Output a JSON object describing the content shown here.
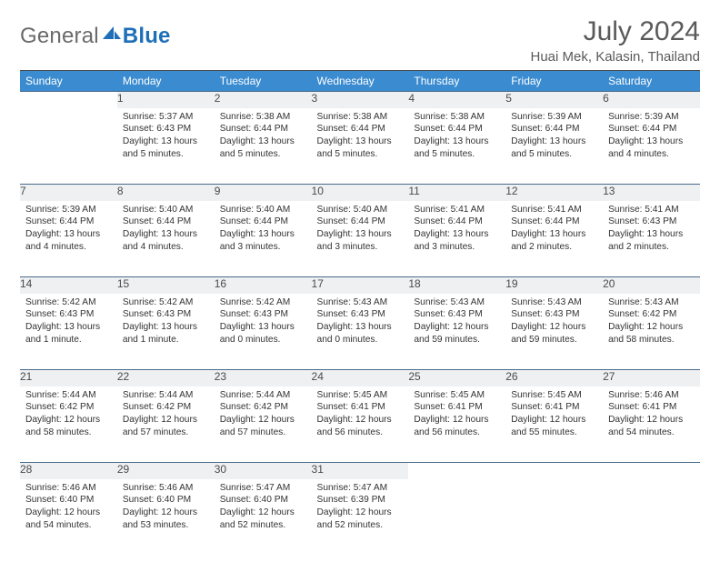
{
  "logo": {
    "textLeft": "General",
    "textRight": "Blue"
  },
  "title": "July 2024",
  "location": "Huai Mek, Kalasin, Thailand",
  "colors": {
    "headerBg": "#3a8bd0",
    "headerText": "#ffffff",
    "dayNumBg": "#eef0f2",
    "textGray": "#5a5a5a",
    "logoGray": "#6a6a6a",
    "logoBlue": "#1e6fb8",
    "ruleColor": "#4a4a4a"
  },
  "weekdays": [
    "Sunday",
    "Monday",
    "Tuesday",
    "Wednesday",
    "Thursday",
    "Friday",
    "Saturday"
  ],
  "weeks": [
    [
      null,
      {
        "n": "1",
        "sunrise": "5:37 AM",
        "sunset": "6:43 PM",
        "daylight": "13 hours and 5 minutes."
      },
      {
        "n": "2",
        "sunrise": "5:38 AM",
        "sunset": "6:44 PM",
        "daylight": "13 hours and 5 minutes."
      },
      {
        "n": "3",
        "sunrise": "5:38 AM",
        "sunset": "6:44 PM",
        "daylight": "13 hours and 5 minutes."
      },
      {
        "n": "4",
        "sunrise": "5:38 AM",
        "sunset": "6:44 PM",
        "daylight": "13 hours and 5 minutes."
      },
      {
        "n": "5",
        "sunrise": "5:39 AM",
        "sunset": "6:44 PM",
        "daylight": "13 hours and 5 minutes."
      },
      {
        "n": "6",
        "sunrise": "5:39 AM",
        "sunset": "6:44 PM",
        "daylight": "13 hours and 4 minutes."
      }
    ],
    [
      {
        "n": "7",
        "sunrise": "5:39 AM",
        "sunset": "6:44 PM",
        "daylight": "13 hours and 4 minutes."
      },
      {
        "n": "8",
        "sunrise": "5:40 AM",
        "sunset": "6:44 PM",
        "daylight": "13 hours and 4 minutes."
      },
      {
        "n": "9",
        "sunrise": "5:40 AM",
        "sunset": "6:44 PM",
        "daylight": "13 hours and 3 minutes."
      },
      {
        "n": "10",
        "sunrise": "5:40 AM",
        "sunset": "6:44 PM",
        "daylight": "13 hours and 3 minutes."
      },
      {
        "n": "11",
        "sunrise": "5:41 AM",
        "sunset": "6:44 PM",
        "daylight": "13 hours and 3 minutes."
      },
      {
        "n": "12",
        "sunrise": "5:41 AM",
        "sunset": "6:44 PM",
        "daylight": "13 hours and 2 minutes."
      },
      {
        "n": "13",
        "sunrise": "5:41 AM",
        "sunset": "6:43 PM",
        "daylight": "13 hours and 2 minutes."
      }
    ],
    [
      {
        "n": "14",
        "sunrise": "5:42 AM",
        "sunset": "6:43 PM",
        "daylight": "13 hours and 1 minute."
      },
      {
        "n": "15",
        "sunrise": "5:42 AM",
        "sunset": "6:43 PM",
        "daylight": "13 hours and 1 minute."
      },
      {
        "n": "16",
        "sunrise": "5:42 AM",
        "sunset": "6:43 PM",
        "daylight": "13 hours and 0 minutes."
      },
      {
        "n": "17",
        "sunrise": "5:43 AM",
        "sunset": "6:43 PM",
        "daylight": "13 hours and 0 minutes."
      },
      {
        "n": "18",
        "sunrise": "5:43 AM",
        "sunset": "6:43 PM",
        "daylight": "12 hours and 59 minutes."
      },
      {
        "n": "19",
        "sunrise": "5:43 AM",
        "sunset": "6:43 PM",
        "daylight": "12 hours and 59 minutes."
      },
      {
        "n": "20",
        "sunrise": "5:43 AM",
        "sunset": "6:42 PM",
        "daylight": "12 hours and 58 minutes."
      }
    ],
    [
      {
        "n": "21",
        "sunrise": "5:44 AM",
        "sunset": "6:42 PM",
        "daylight": "12 hours and 58 minutes."
      },
      {
        "n": "22",
        "sunrise": "5:44 AM",
        "sunset": "6:42 PM",
        "daylight": "12 hours and 57 minutes."
      },
      {
        "n": "23",
        "sunrise": "5:44 AM",
        "sunset": "6:42 PM",
        "daylight": "12 hours and 57 minutes."
      },
      {
        "n": "24",
        "sunrise": "5:45 AM",
        "sunset": "6:41 PM",
        "daylight": "12 hours and 56 minutes."
      },
      {
        "n": "25",
        "sunrise": "5:45 AM",
        "sunset": "6:41 PM",
        "daylight": "12 hours and 56 minutes."
      },
      {
        "n": "26",
        "sunrise": "5:45 AM",
        "sunset": "6:41 PM",
        "daylight": "12 hours and 55 minutes."
      },
      {
        "n": "27",
        "sunrise": "5:46 AM",
        "sunset": "6:41 PM",
        "daylight": "12 hours and 54 minutes."
      }
    ],
    [
      {
        "n": "28",
        "sunrise": "5:46 AM",
        "sunset": "6:40 PM",
        "daylight": "12 hours and 54 minutes."
      },
      {
        "n": "29",
        "sunrise": "5:46 AM",
        "sunset": "6:40 PM",
        "daylight": "12 hours and 53 minutes."
      },
      {
        "n": "30",
        "sunrise": "5:47 AM",
        "sunset": "6:40 PM",
        "daylight": "12 hours and 52 minutes."
      },
      {
        "n": "31",
        "sunrise": "5:47 AM",
        "sunset": "6:39 PM",
        "daylight": "12 hours and 52 minutes."
      },
      null,
      null,
      null
    ]
  ],
  "labels": {
    "sunrise": "Sunrise:",
    "sunset": "Sunset:",
    "daylight": "Daylight:"
  }
}
